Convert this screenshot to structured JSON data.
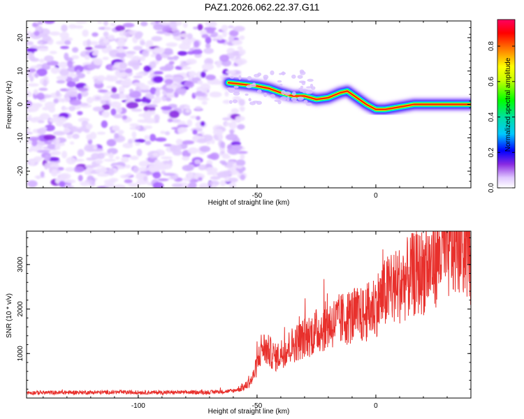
{
  "title": "PAZ1.2026.062.22.37.G11",
  "colors": {
    "trace": "#e8302c",
    "axis": "#000000"
  },
  "chart_data": [
    {
      "type": "heatmap",
      "xlabel": "Height of straight line (km)",
      "ylabel": "Frequency (Hz)",
      "xlim": [
        -147,
        40
      ],
      "ylim": [
        -25,
        25
      ],
      "xticks": [
        -100,
        -50,
        0
      ],
      "xtick_labels": [
        "-100",
        "-50",
        "0"
      ],
      "yticks": [
        -20,
        -10,
        0,
        10,
        20
      ],
      "ytick_labels": [
        "-20",
        "-10",
        "0",
        "10",
        "20"
      ],
      "noise_region_x": [
        -147,
        -56
      ],
      "ridge": {
        "x": [
          -62,
          -56,
          -50,
          -45,
          -40,
          -35,
          -30,
          -25,
          -20,
          -15,
          -12,
          -8,
          -4,
          0,
          4,
          8,
          12,
          16,
          20,
          25,
          30,
          35,
          40
        ],
        "frequency": [
          6.5,
          6.0,
          5.5,
          4.8,
          3.5,
          2.5,
          2.5,
          1.5,
          2.0,
          3.5,
          4.0,
          2.0,
          0.0,
          -1.5,
          -1.5,
          -1.0,
          -0.5,
          0.0,
          0.0,
          0.0,
          0.0,
          0.0,
          0.0
        ]
      },
      "colorbar": {
        "label": "Normalized spectral amplitude",
        "range": [
          0,
          0.95
        ],
        "ticks": [
          0,
          0.2,
          0.4,
          0.6,
          0.8
        ],
        "tick_labels": [
          "0.0",
          "0.2",
          "0.4",
          "0.6",
          "0.8"
        ]
      }
    },
    {
      "type": "line",
      "xlabel": "Height of straight line (km)",
      "ylabel": "SNR (10 * v/v)",
      "xlim": [
        -147,
        40
      ],
      "ylim": [
        0,
        3750
      ],
      "xticks": [
        -100,
        -50,
        0
      ],
      "xtick_labels": [
        "-100",
        "-50",
        "0"
      ],
      "yticks": [
        1000,
        2000,
        3000
      ],
      "ytick_labels": [
        "1000",
        "2000",
        "3000"
      ],
      "series": [
        {
          "name": "SNR",
          "x": [
            -147,
            -130,
            -110,
            -90,
            -70,
            -60,
            -55,
            -52,
            -50,
            -48,
            -45,
            -42,
            -40,
            -35,
            -30,
            -25,
            -20,
            -15,
            -10,
            -5,
            0,
            5,
            10,
            15,
            20,
            25,
            28,
            30,
            33,
            36,
            38,
            40
          ],
          "values": [
            120,
            125,
            130,
            125,
            130,
            160,
            260,
            420,
            750,
            1150,
            1050,
            900,
            1000,
            1200,
            1350,
            1500,
            1650,
            1750,
            1850,
            1850,
            2100,
            2400,
            2550,
            2750,
            2850,
            3100,
            3350,
            3300,
            3450,
            3550,
            3400,
            3150
          ]
        }
      ]
    }
  ]
}
